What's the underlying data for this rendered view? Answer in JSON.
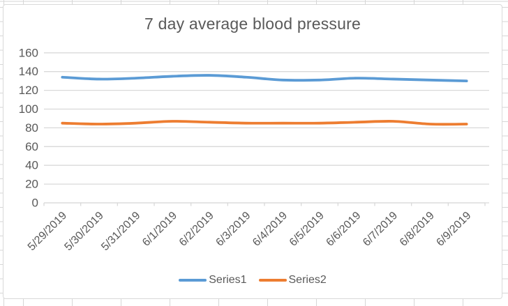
{
  "chart_data": {
    "type": "line",
    "title": "7 day average blood pressure",
    "categories": [
      "5/29/2019",
      "5/30/2019",
      "5/31/2019",
      "6/1/2019",
      "6/2/2019",
      "6/3/2019",
      "6/4/2019",
      "6/5/2019",
      "6/6/2019",
      "6/7/2019",
      "6/8/2019",
      "6/9/2019"
    ],
    "series": [
      {
        "name": "Series1",
        "color": "#5B9BD5",
        "values": [
          134,
          132,
          133,
          135,
          136,
          134,
          131,
          131,
          133,
          132,
          131,
          130
        ]
      },
      {
        "name": "Series2",
        "color": "#ED7D31",
        "values": [
          85,
          84,
          85,
          87,
          86,
          85,
          85,
          85,
          86,
          87,
          84,
          84
        ]
      }
    ],
    "ylim": [
      0,
      160
    ],
    "ytick_step": 20,
    "yticks": [
      0,
      20,
      40,
      60,
      80,
      100,
      120,
      140,
      160
    ],
    "xlabel": "",
    "ylabel": "",
    "grid": true,
    "smooth": true,
    "legend_position": "bottom",
    "x_label_rotation": -45,
    "axis_text_color": "#595959",
    "gridline_color": "#D9D9D9",
    "title_color": "#595959"
  },
  "page": {
    "sheet_grid_color": "#D6D6D6",
    "chart_background": "#FFFFFF",
    "chart_border_color": "#D9D9D9"
  }
}
